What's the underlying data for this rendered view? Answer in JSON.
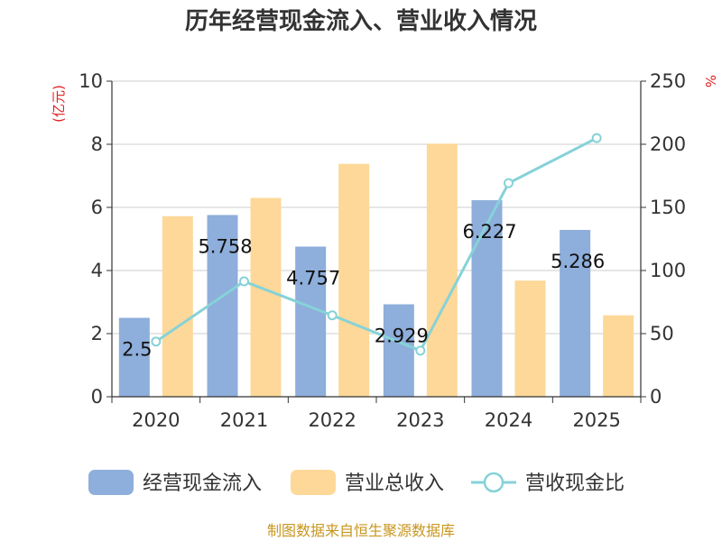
{
  "chart_data": {
    "type": "bar",
    "title": "历年经营现金流入、营业收入情况",
    "categories": [
      "2020",
      "2021",
      "2022",
      "2023",
      "2024",
      "2025"
    ],
    "series": [
      {
        "name": "经营现金流入",
        "type": "bar",
        "axis": "left",
        "color": "#8eaedb",
        "values": [
          2.5,
          5.758,
          4.757,
          2.929,
          6.227,
          5.286
        ],
        "labels": [
          "2.5",
          "5.758",
          "4.757",
          "2.929",
          "6.227",
          "5.286"
        ]
      },
      {
        "name": "营业总收入",
        "type": "bar",
        "axis": "left",
        "color": "#fdd898",
        "values": [
          5.72,
          6.3,
          7.38,
          8.02,
          3.68,
          2.58
        ]
      },
      {
        "name": "营收现金比",
        "type": "line",
        "axis": "right",
        "color": "#86d2d8",
        "values": [
          43.7,
          91.4,
          64.5,
          36.5,
          169.2,
          204.9
        ]
      }
    ],
    "y_left": {
      "unit": "(亿元)",
      "ylim": [
        0,
        10
      ],
      "ticks": [
        "0",
        "2",
        "4",
        "6",
        "8",
        "10"
      ]
    },
    "y_right": {
      "unit": "%",
      "ylim": [
        0,
        250
      ],
      "ticks": [
        "0",
        "50",
        "100",
        "150",
        "200",
        "250"
      ]
    },
    "grid": true,
    "legend_position": "bottom",
    "source": "制图数据来自恒生聚源数据库"
  }
}
